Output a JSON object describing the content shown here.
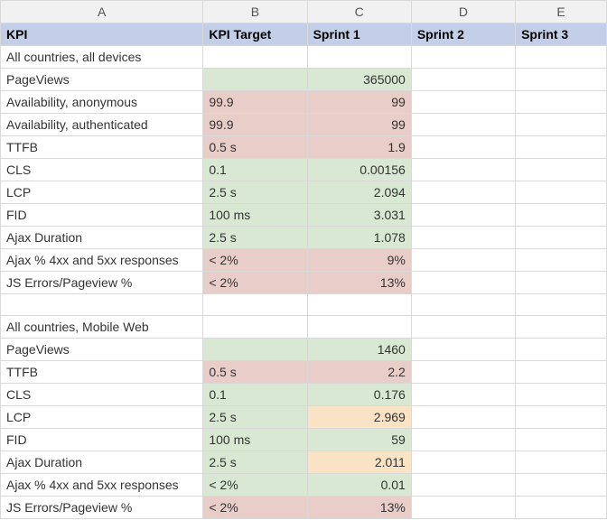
{
  "colors": {
    "column_header_bg": "#f1f1f1",
    "header_row_bg": "#c3cfe8",
    "border": "#d9d9d9",
    "good_target": "#d8e8d3",
    "bad_target": "#e9cdc9",
    "good_value": "#d8e8d3",
    "bad_value": "#e9cdc9",
    "warn_value": "#f9e3c4",
    "text": "#333333"
  },
  "columns": {
    "A": "A",
    "B": "B",
    "C": "C",
    "D": "D",
    "E": "E"
  },
  "header": {
    "kpi": "KPI",
    "target": "KPI Target",
    "s1": "Sprint 1",
    "s2": "Sprint 2",
    "s3": "Sprint 3"
  },
  "sections": [
    {
      "title": "All countries, all devices",
      "rows": [
        {
          "kpi": "PageViews",
          "target": "",
          "target_status": "good",
          "value": "365000",
          "value_status": "good"
        },
        {
          "kpi": "Availability, anonymous",
          "target": "99.9",
          "target_status": "bad",
          "value": "99",
          "value_status": "bad"
        },
        {
          "kpi": "Availability, authenticated",
          "target": "99.9",
          "target_status": "bad",
          "value": "99",
          "value_status": "bad"
        },
        {
          "kpi": "TTFB",
          "target": "0.5 s",
          "target_status": "bad",
          "value": "1.9",
          "value_status": "bad"
        },
        {
          "kpi": "CLS",
          "target": "0.1",
          "target_status": "good",
          "value": "0.00156",
          "value_status": "good"
        },
        {
          "kpi": "LCP",
          "target": "2.5 s",
          "target_status": "good",
          "value": "2.094",
          "value_status": "good"
        },
        {
          "kpi": "FID",
          "target": "100 ms",
          "target_status": "good",
          "value": "3.031",
          "value_status": "good"
        },
        {
          "kpi": "Ajax Duration",
          "target": "2.5 s",
          "target_status": "good",
          "value": "1.078",
          "value_status": "good"
        },
        {
          "kpi": "Ajax % 4xx and 5xx responses",
          "target": "< 2%",
          "target_status": "bad",
          "value": "9%",
          "value_status": "bad"
        },
        {
          "kpi": "JS Errors/Pageview %",
          "target": "< 2%",
          "target_status": "bad",
          "value": "13%",
          "value_status": "bad"
        }
      ]
    },
    {
      "title": "All countries, Mobile Web",
      "rows": [
        {
          "kpi": "PageViews",
          "target": "",
          "target_status": "good",
          "value": "1460",
          "value_status": "good"
        },
        {
          "kpi": "TTFB",
          "target": "0.5 s",
          "target_status": "bad",
          "value": "2.2",
          "value_status": "bad"
        },
        {
          "kpi": "CLS",
          "target": "0.1",
          "target_status": "good",
          "value": "0.176",
          "value_status": "good"
        },
        {
          "kpi": "LCP",
          "target": "2.5 s",
          "target_status": "good",
          "value": "2.969",
          "value_status": "warn"
        },
        {
          "kpi": "FID",
          "target": "100 ms",
          "target_status": "good",
          "value": "59",
          "value_status": "good"
        },
        {
          "kpi": "Ajax Duration",
          "target": "2.5 s",
          "target_status": "good",
          "value": "2.011",
          "value_status": "warn"
        },
        {
          "kpi": "Ajax % 4xx and 5xx responses",
          "target": "< 2%",
          "target_status": "good",
          "value": "0.01",
          "value_status": "good"
        },
        {
          "kpi": "JS Errors/Pageview %",
          "target": "< 2%",
          "target_status": "bad",
          "value": "13%",
          "value_status": "bad"
        }
      ]
    }
  ]
}
